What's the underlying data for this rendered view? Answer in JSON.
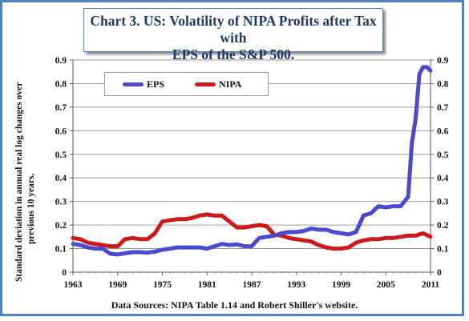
{
  "title": {
    "line1": "Chart 3. US: Volatility of NIPA Profits after Tax with",
    "line2": "EPS of the S&P 500."
  },
  "source_note": "Data Sources: NIPA Table 1.14 and Robert Shiller's website.",
  "chart_data": {
    "type": "line",
    "title": "Chart 3. US: Volatility of NIPA Profits after Tax with EPS of the S&P 500.",
    "xlabel": "",
    "ylabel": "Standard deviation in annual real log changes over previous 10 years.",
    "ylabel_lines": [
      "Standard deviation in annual real log changes over",
      "previous 10 years."
    ],
    "xlim": [
      1963,
      2011
    ],
    "ylim": [
      0,
      0.9
    ],
    "x_ticks": [
      "1963",
      "1969",
      "1975",
      "1981",
      "1987",
      "1993",
      "1999",
      "2005",
      "2011"
    ],
    "y_ticks": [
      "0",
      "0.1",
      "0.2",
      "0.3",
      "0.4",
      "0.5",
      "0.6",
      "0.7",
      "0.8",
      "0.9"
    ],
    "legend_position": "top-left inside plot",
    "grid": "horizontal",
    "series": [
      {
        "name": "EPS",
        "color": "#4a4ad0",
        "points": [
          [
            1963,
            0.12
          ],
          [
            1964,
            0.115
          ],
          [
            1965,
            0.105
          ],
          [
            1966,
            0.1
          ],
          [
            1967,
            0.1
          ],
          [
            1968,
            0.078
          ],
          [
            1969,
            0.075
          ],
          [
            1970,
            0.08
          ],
          [
            1971,
            0.085
          ],
          [
            1972,
            0.085
          ],
          [
            1973,
            0.083
          ],
          [
            1974,
            0.087
          ],
          [
            1975,
            0.095
          ],
          [
            1976,
            0.1
          ],
          [
            1977,
            0.105
          ],
          [
            1978,
            0.105
          ],
          [
            1979,
            0.105
          ],
          [
            1980,
            0.105
          ],
          [
            1981,
            0.1
          ],
          [
            1982,
            0.11
          ],
          [
            1983,
            0.12
          ],
          [
            1984,
            0.115
          ],
          [
            1985,
            0.118
          ],
          [
            1986,
            0.11
          ],
          [
            1987,
            0.11
          ],
          [
            1988,
            0.145
          ],
          [
            1989,
            0.15
          ],
          [
            1990,
            0.155
          ],
          [
            1991,
            0.165
          ],
          [
            1992,
            0.17
          ],
          [
            1993,
            0.17
          ],
          [
            1994,
            0.175
          ],
          [
            1995,
            0.185
          ],
          [
            1996,
            0.18
          ],
          [
            1997,
            0.18
          ],
          [
            1998,
            0.17
          ],
          [
            1999,
            0.165
          ],
          [
            2000,
            0.16
          ],
          [
            2001,
            0.17
          ],
          [
            2002,
            0.24
          ],
          [
            2003,
            0.25
          ],
          [
            2004,
            0.28
          ],
          [
            2005,
            0.275
          ],
          [
            2006,
            0.28
          ],
          [
            2007,
            0.28
          ],
          [
            2008,
            0.32
          ],
          [
            2008.5,
            0.55
          ],
          [
            2009,
            0.65
          ],
          [
            2009.5,
            0.84
          ],
          [
            2010,
            0.87
          ],
          [
            2010.5,
            0.87
          ],
          [
            2011,
            0.855
          ]
        ]
      },
      {
        "name": "NIPA",
        "color": "#cc1a1a",
        "points": [
          [
            1963,
            0.145
          ],
          [
            1964,
            0.14
          ],
          [
            1965,
            0.125
          ],
          [
            1966,
            0.12
          ],
          [
            1967,
            0.115
          ],
          [
            1968,
            0.11
          ],
          [
            1969,
            0.11
          ],
          [
            1970,
            0.14
          ],
          [
            1971,
            0.145
          ],
          [
            1972,
            0.14
          ],
          [
            1973,
            0.14
          ],
          [
            1974,
            0.165
          ],
          [
            1975,
            0.215
          ],
          [
            1976,
            0.22
          ],
          [
            1977,
            0.225
          ],
          [
            1978,
            0.225
          ],
          [
            1979,
            0.23
          ],
          [
            1980,
            0.24
          ],
          [
            1981,
            0.245
          ],
          [
            1982,
            0.24
          ],
          [
            1983,
            0.24
          ],
          [
            1984,
            0.215
          ],
          [
            1985,
            0.19
          ],
          [
            1986,
            0.19
          ],
          [
            1987,
            0.195
          ],
          [
            1988,
            0.2
          ],
          [
            1989,
            0.195
          ],
          [
            1990,
            0.16
          ],
          [
            1991,
            0.155
          ],
          [
            1992,
            0.145
          ],
          [
            1993,
            0.14
          ],
          [
            1994,
            0.135
          ],
          [
            1995,
            0.13
          ],
          [
            1996,
            0.115
          ],
          [
            1997,
            0.105
          ],
          [
            1998,
            0.1
          ],
          [
            1999,
            0.1
          ],
          [
            2000,
            0.105
          ],
          [
            2001,
            0.125
          ],
          [
            2002,
            0.135
          ],
          [
            2003,
            0.14
          ],
          [
            2004,
            0.14
          ],
          [
            2005,
            0.145
          ],
          [
            2006,
            0.145
          ],
          [
            2007,
            0.15
          ],
          [
            2008,
            0.155
          ],
          [
            2009,
            0.155
          ],
          [
            2010,
            0.165
          ],
          [
            2011,
            0.15
          ]
        ]
      }
    ]
  }
}
